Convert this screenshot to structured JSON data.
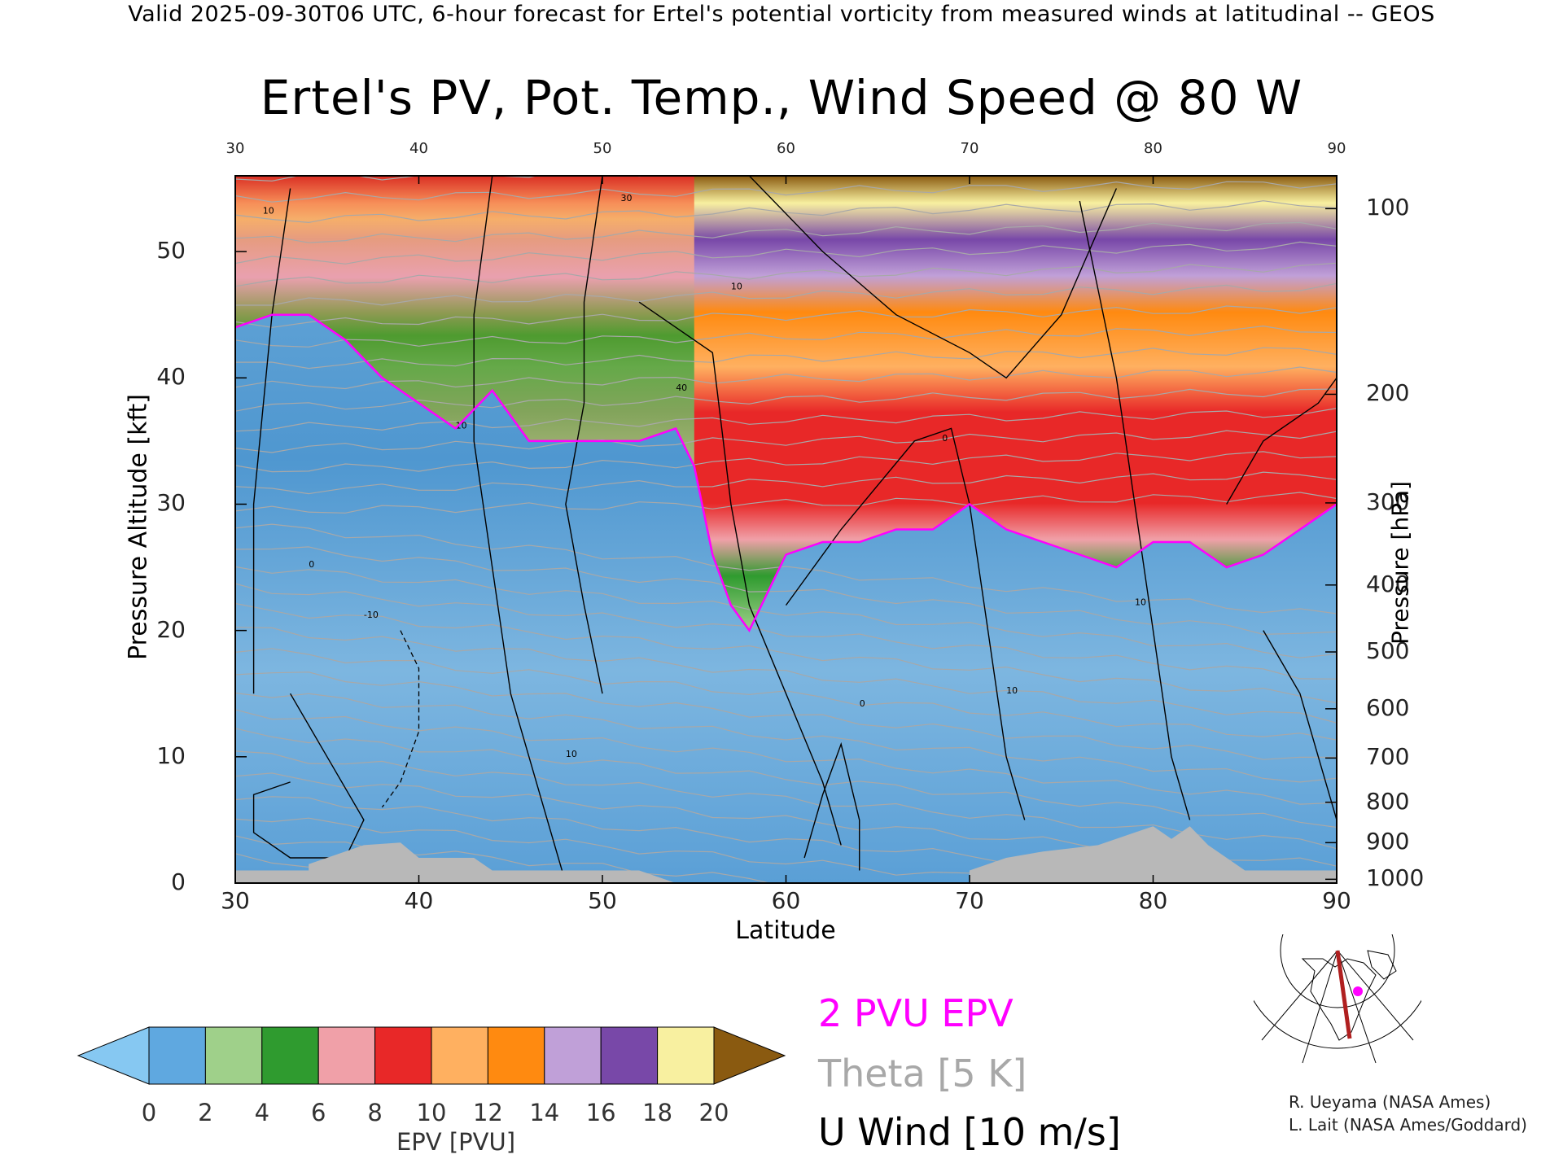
{
  "header": {
    "banner": "Valid 2025-09-30T06 UTC, 6-hour forecast for Ertel's potential vorticity from measured winds at latitudinal -- GEOS",
    "title": "Ertel's PV, Pot. Temp., Wind Speed @ 80 W"
  },
  "chart_data": {
    "type": "heatmap",
    "title": "Ertel's PV, Pot. Temp., Wind Speed @ 80 W",
    "xlabel": "Latitude",
    "ylabel": "Pressure Altitude [kft]",
    "y2label": "Pressure [hPa]",
    "xlim": [
      30,
      90
    ],
    "ylim": [
      0,
      56
    ],
    "x_ticks": [
      30,
      40,
      50,
      60,
      70,
      80,
      90
    ],
    "y_ticks": [
      0,
      10,
      20,
      30,
      40,
      50
    ],
    "pressure_ticks": [
      {
        "label": "100",
        "kft": 53.4
      },
      {
        "label": "200",
        "kft": 38.7
      },
      {
        "label": "300",
        "kft": 30.1
      },
      {
        "label": "400",
        "kft": 23.6
      },
      {
        "label": "500",
        "kft": 18.3
      },
      {
        "label": "600",
        "kft": 13.8
      },
      {
        "label": "700",
        "kft": 9.9
      },
      {
        "label": "800",
        "kft": 6.4
      },
      {
        "label": "900",
        "kft": 3.2
      },
      {
        "label": "1000",
        "kft": 0.3
      }
    ],
    "series": [
      {
        "name": "2 PVU EPV",
        "color": "#ff00ff",
        "x": [
          30,
          32,
          34,
          36,
          38,
          40,
          42,
          44,
          46,
          48,
          50,
          52,
          54,
          55,
          56,
          57,
          58,
          60,
          62,
          64,
          66,
          68,
          70,
          72,
          74,
          76,
          78,
          80,
          82,
          84,
          86,
          88,
          90
        ],
        "y": [
          44,
          45,
          45,
          43,
          40,
          38,
          36,
          39,
          35,
          35,
          35,
          35,
          36,
          33,
          26,
          22,
          20,
          26,
          27,
          27,
          28,
          28,
          30,
          28,
          27,
          26,
          25,
          27,
          27,
          25,
          26,
          28,
          30
        ]
      },
      {
        "name": "Theta [5 K]",
        "color": "#a8a8a8"
      },
      {
        "name": "U Wind [10 m/s]",
        "color": "#000000"
      }
    ],
    "colorbar": {
      "label": "EPV [PVU]",
      "ticks": [
        0,
        2,
        4,
        6,
        8,
        10,
        12,
        14,
        16,
        18,
        20
      ],
      "colors": [
        "#86c8f2",
        "#5fa8e0",
        "#9fd08a",
        "#2f9b2f",
        "#f0a0a8",
        "#e82828",
        "#ffb060",
        "#ff8a10",
        "#c0a0d8",
        "#7848a8",
        "#f8f0a0",
        "#8a5a10"
      ]
    },
    "legend": [
      {
        "label": "2 PVU EPV",
        "color": "#ff00ff"
      },
      {
        "label": "Theta [5 K]",
        "color": "#a8a8a8"
      },
      {
        "label": "U Wind [10 m/s]",
        "color": "#000000"
      }
    ],
    "contour_labels": [
      "10",
      "30",
      "40",
      "0",
      "-10",
      "10",
      "10",
      "0",
      "10",
      "0",
      "10",
      "10",
      "10"
    ]
  },
  "credits": {
    "line1": "R. Ueyama (NASA Ames)",
    "line2": "L. Lait (NASA Ames/Goddard)"
  }
}
